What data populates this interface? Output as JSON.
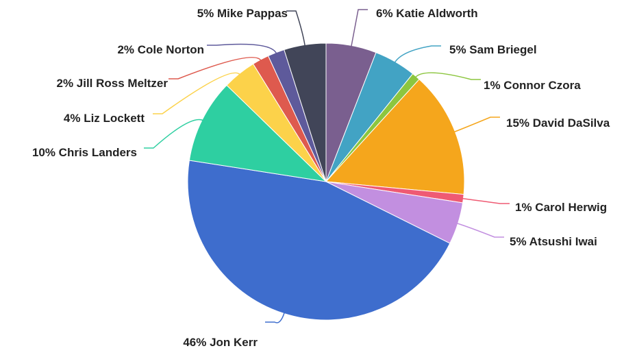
{
  "chart_data": {
    "type": "pie",
    "title": "",
    "start": "top",
    "direction": "clockwise",
    "slices": [
      {
        "label": "6% Katie Aldworth",
        "name": "Katie Aldworth",
        "value": 6,
        "color": "#7a5f8f"
      },
      {
        "label": "5% Sam Briegel",
        "name": "Sam Briegel",
        "value": 5,
        "color": "#42a3c4"
      },
      {
        "label": "1% Connor Czora",
        "name": "Connor Czora",
        "value": 1,
        "color": "#8cc63f"
      },
      {
        "label": "15% David DaSilva",
        "name": "David DaSilva",
        "value": 15,
        "color": "#f5a61c"
      },
      {
        "label": "1% Carol Herwig",
        "name": "Carol Herwig",
        "value": 1,
        "color": "#ef5a73"
      },
      {
        "label": "5% Atsushi Iwai",
        "name": "Atsushi Iwai",
        "value": 5,
        "color": "#c28fe0"
      },
      {
        "label": "46% Jon Kerr",
        "name": "Jon Kerr",
        "value": 46,
        "color": "#3e6dcd"
      },
      {
        "label": "10% Chris Landers",
        "name": "Chris Landers",
        "value": 10,
        "color": "#2ecfa1"
      },
      {
        "label": "4% Liz Lockett",
        "name": "Liz Lockett",
        "value": 4,
        "color": "#fcd24a"
      },
      {
        "label": "2% Jill Ross Meltzer",
        "name": "Jill Ross Meltzer",
        "value": 2,
        "color": "#de5a4e"
      },
      {
        "label": "2% Cole Norton",
        "name": "Cole Norton",
        "value": 2,
        "color": "#5e5a9b"
      },
      {
        "label": "5% Mike Pappas",
        "name": "Mike Pappas",
        "value": 5,
        "color": "#414558"
      }
    ]
  }
}
